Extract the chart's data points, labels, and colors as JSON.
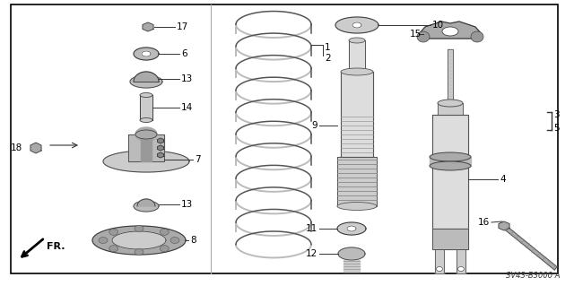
{
  "bg_color": "#ffffff",
  "border_color": "#000000",
  "lc": "#555555",
  "tc": "#000000",
  "diagram_code": "SV43-B3000 A",
  "figsize": [
    6.4,
    3.19
  ],
  "dpi": 100,
  "xlim": [
    0,
    640
  ],
  "ylim": [
    0,
    319
  ]
}
